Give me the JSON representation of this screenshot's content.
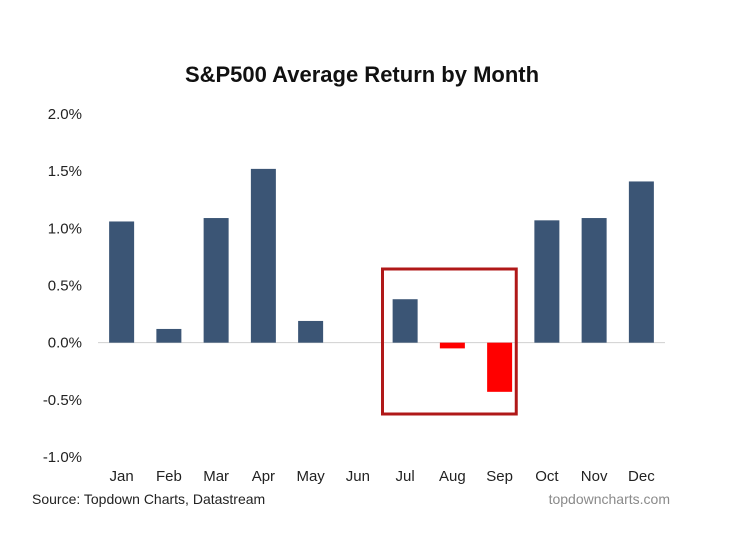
{
  "chart_data": {
    "type": "bar",
    "title": "S&P500 Average Return by Month",
    "categories": [
      "Jan",
      "Feb",
      "Mar",
      "Apr",
      "May",
      "Jun",
      "Jul",
      "Aug",
      "Sep",
      "Oct",
      "Nov",
      "Dec"
    ],
    "values": [
      1.06,
      0.12,
      1.09,
      1.52,
      0.19,
      0.0,
      0.38,
      -0.05,
      -0.43,
      1.07,
      1.09,
      1.41
    ],
    "value_unit": "%",
    "y_ticks": [
      "2.0%",
      "1.5%",
      "1.0%",
      "0.5%",
      "0.0%",
      "-0.5%",
      "-1.0%"
    ],
    "y_tick_values": [
      2.0,
      1.5,
      1.0,
      0.5,
      0.0,
      -0.5,
      -1.0
    ],
    "ylim": [
      -1.0,
      2.0
    ],
    "grid": false,
    "highlighted_categories": [
      "Jul",
      "Aug",
      "Sep"
    ],
    "colors": {
      "positive": "#3b5575",
      "negative": "#ff0000",
      "highlight_box": "#b01818",
      "axis": "#d0d0d0"
    }
  },
  "source": "Source: Topdown Charts, Datastream",
  "watermark": "topdowncharts.com"
}
